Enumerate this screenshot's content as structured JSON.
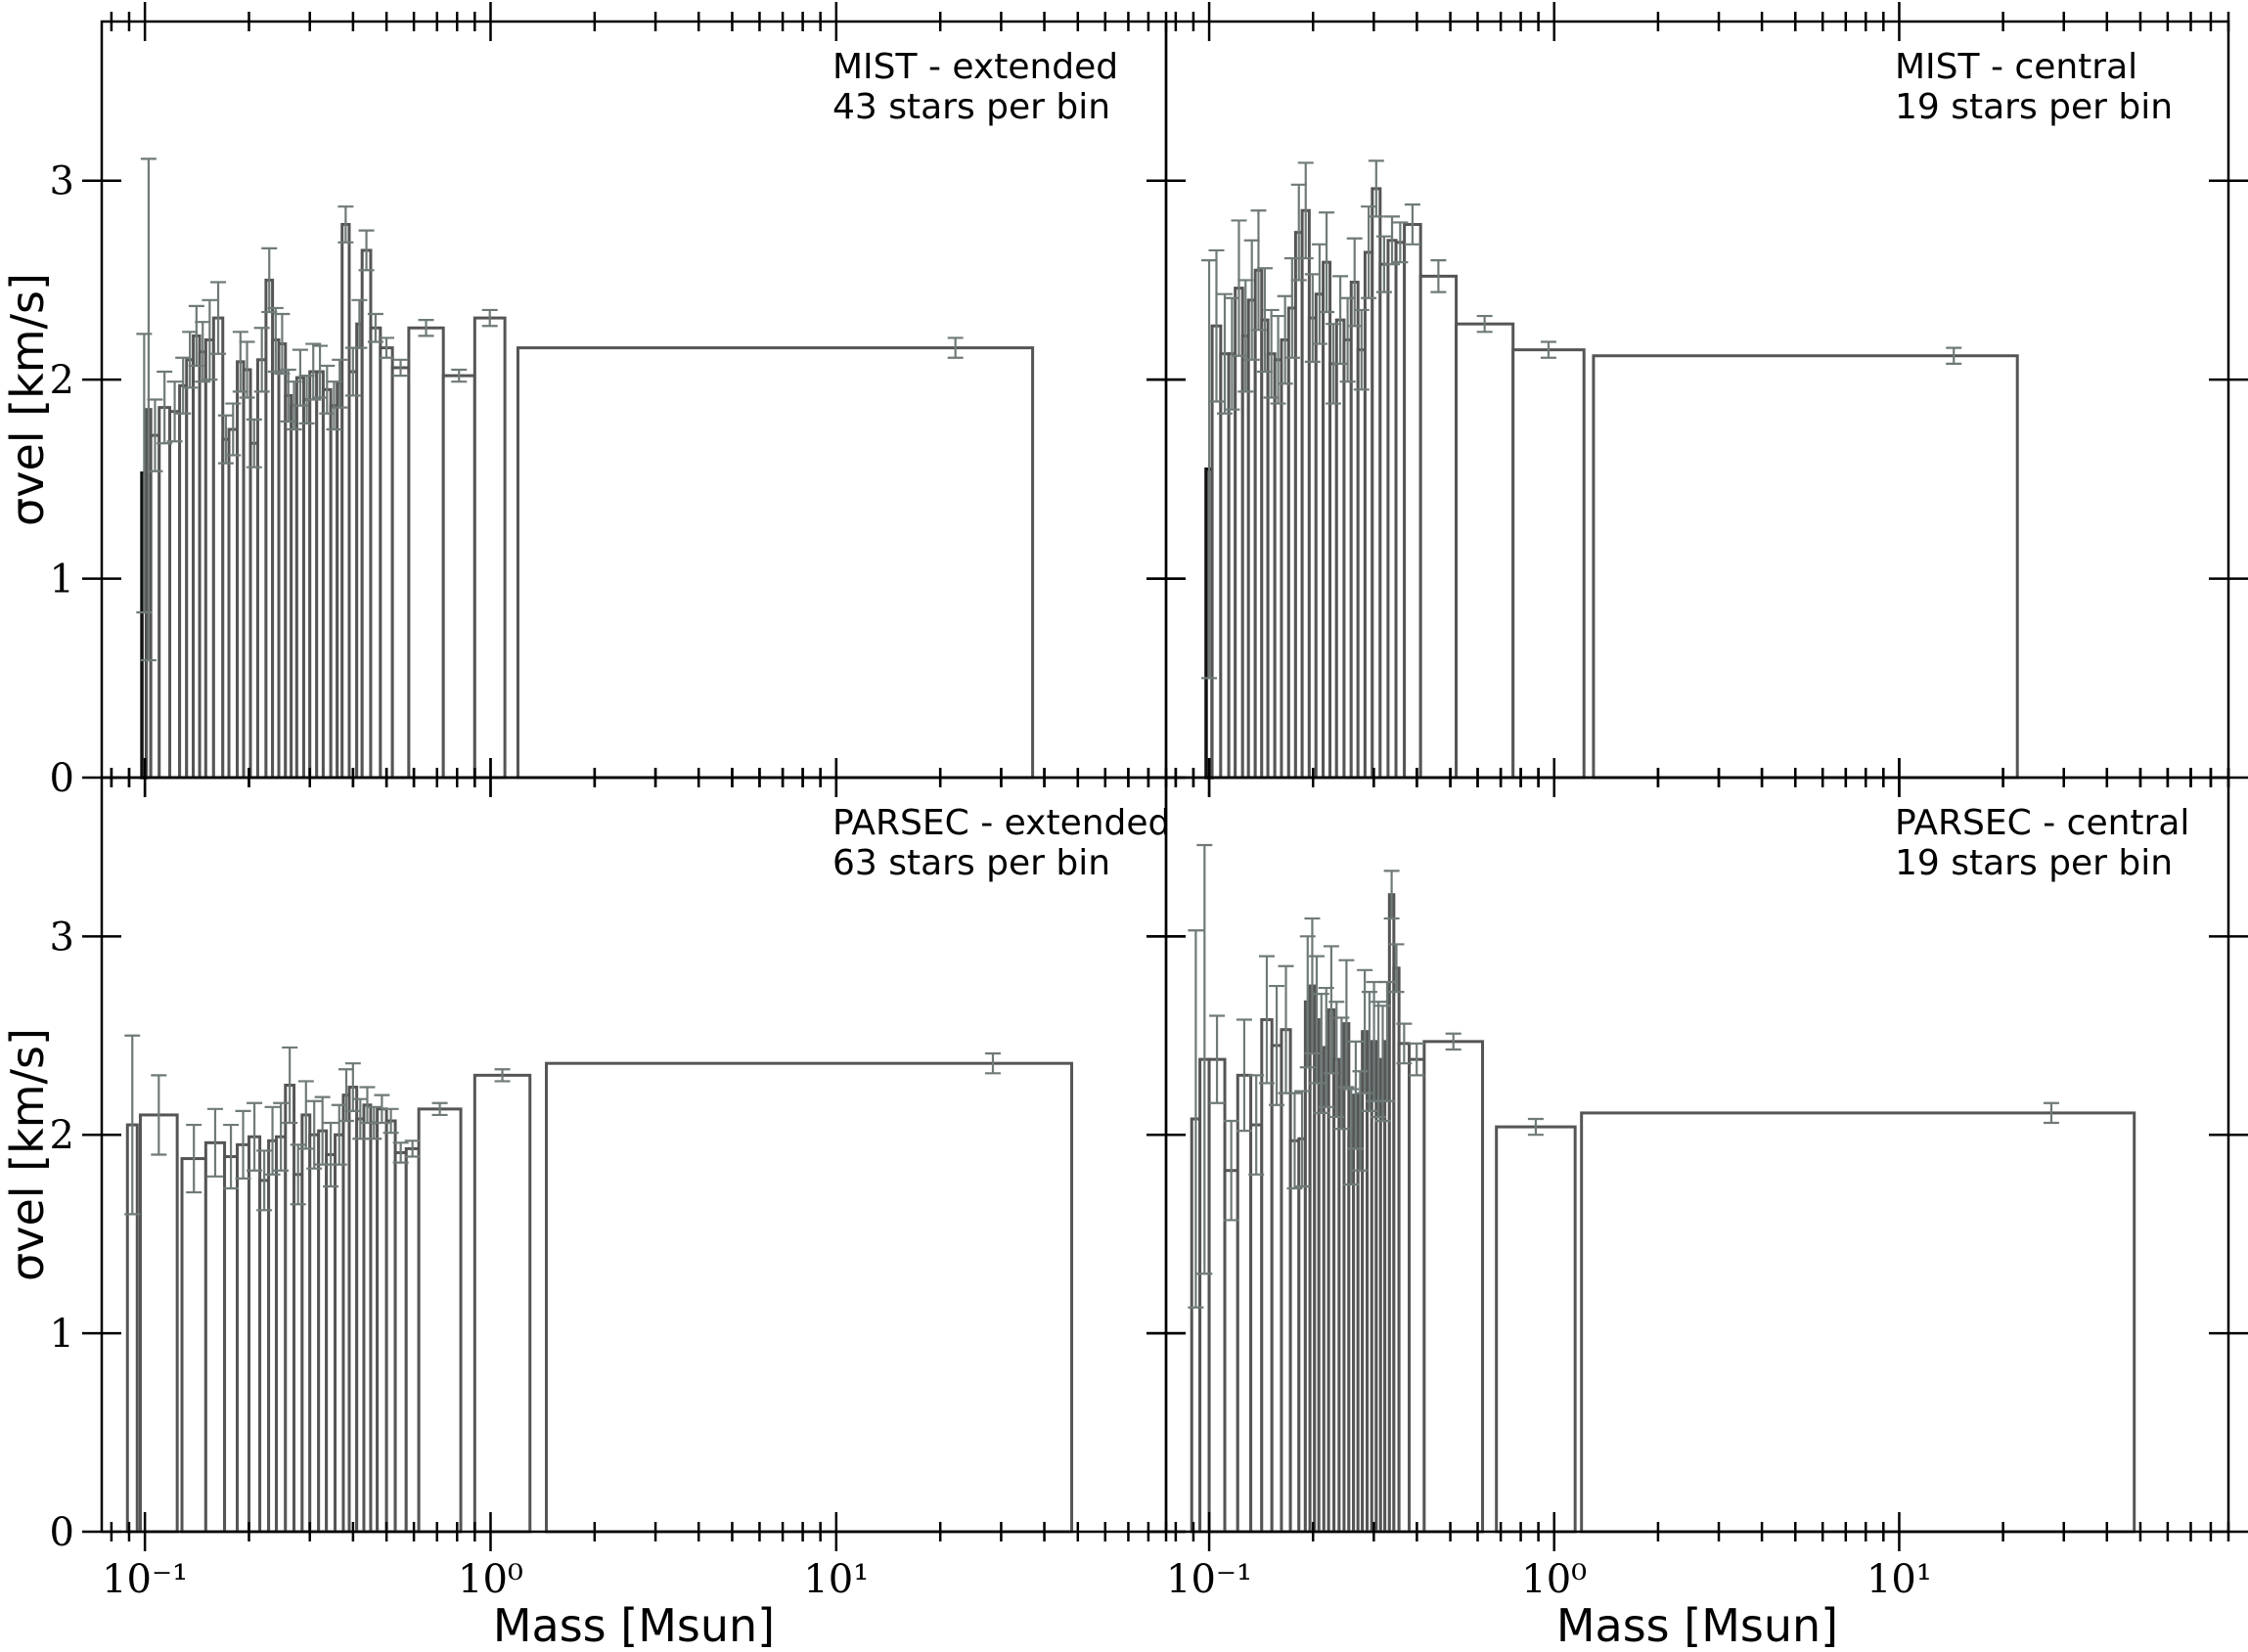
{
  "chart_data": [
    {
      "type": "bar",
      "title": "",
      "annotation_lines": [
        "MIST - extended",
        "43 stars per bin"
      ],
      "xscale": "log",
      "xlim": [
        0.075,
        90
      ],
      "ylim": [
        0,
        3.8
      ],
      "xlabel": "",
      "ylabel": "σvel [km/s]",
      "yticks": [
        "0",
        "1",
        "2",
        "3"
      ],
      "xticks": [],
      "bars": [
        {
          "x0": 0.098,
          "x1": 0.101,
          "y": 1.53,
          "err": 0.7,
          "bold": true
        },
        {
          "x0": 0.101,
          "x1": 0.104,
          "y": 1.85,
          "err": 1.26
        },
        {
          "x0": 0.104,
          "x1": 0.11,
          "y": 1.72,
          "err": 0.18
        },
        {
          "x0": 0.11,
          "x1": 0.118,
          "y": 1.86,
          "err": 0.18
        },
        {
          "x0": 0.118,
          "x1": 0.126,
          "y": 1.84,
          "err": 0.15
        },
        {
          "x0": 0.126,
          "x1": 0.132,
          "y": 1.97,
          "err": 0.14
        },
        {
          "x0": 0.132,
          "x1": 0.138,
          "y": 2.1,
          "err": 0.14
        },
        {
          "x0": 0.138,
          "x1": 0.144,
          "y": 2.22,
          "err": 0.15
        },
        {
          "x0": 0.144,
          "x1": 0.15,
          "y": 2.14,
          "err": 0.15
        },
        {
          "x0": 0.15,
          "x1": 0.158,
          "y": 2.2,
          "err": 0.2
        },
        {
          "x0": 0.158,
          "x1": 0.168,
          "y": 2.31,
          "err": 0.18
        },
        {
          "x0": 0.168,
          "x1": 0.175,
          "y": 1.7,
          "err": 0.12
        },
        {
          "x0": 0.175,
          "x1": 0.185,
          "y": 1.75,
          "err": 0.13
        },
        {
          "x0": 0.185,
          "x1": 0.193,
          "y": 2.09,
          "err": 0.15
        },
        {
          "x0": 0.193,
          "x1": 0.202,
          "y": 2.05,
          "err": 0.14
        },
        {
          "x0": 0.202,
          "x1": 0.212,
          "y": 1.68,
          "err": 0.12
        },
        {
          "x0": 0.212,
          "x1": 0.224,
          "y": 2.1,
          "err": 0.16
        },
        {
          "x0": 0.224,
          "x1": 0.234,
          "y": 2.5,
          "err": 0.16
        },
        {
          "x0": 0.234,
          "x1": 0.244,
          "y": 2.2,
          "err": 0.16
        },
        {
          "x0": 0.244,
          "x1": 0.255,
          "y": 2.18,
          "err": 0.15
        },
        {
          "x0": 0.255,
          "x1": 0.265,
          "y": 1.92,
          "err": 0.13
        },
        {
          "x0": 0.265,
          "x1": 0.275,
          "y": 1.87,
          "err": 0.12
        },
        {
          "x0": 0.275,
          "x1": 0.288,
          "y": 2.01,
          "err": 0.14
        },
        {
          "x0": 0.288,
          "x1": 0.3,
          "y": 1.9,
          "err": 0.12
        },
        {
          "x0": 0.3,
          "x1": 0.314,
          "y": 2.04,
          "err": 0.14
        },
        {
          "x0": 0.314,
          "x1": 0.328,
          "y": 2.04,
          "err": 0.13
        },
        {
          "x0": 0.328,
          "x1": 0.345,
          "y": 1.95,
          "err": 0.12
        },
        {
          "x0": 0.345,
          "x1": 0.36,
          "y": 1.87,
          "err": 0.12
        },
        {
          "x0": 0.36,
          "x1": 0.372,
          "y": 1.98,
          "err": 0.12
        },
        {
          "x0": 0.372,
          "x1": 0.39,
          "y": 2.78,
          "err": 0.09
        },
        {
          "x0": 0.39,
          "x1": 0.41,
          "y": 2.04,
          "err": 0.12
        },
        {
          "x0": 0.41,
          "x1": 0.425,
          "y": 2.28,
          "err": 0.12
        },
        {
          "x0": 0.425,
          "x1": 0.45,
          "y": 2.65,
          "err": 0.1
        },
        {
          "x0": 0.45,
          "x1": 0.48,
          "y": 2.26,
          "err": 0.07
        },
        {
          "x0": 0.48,
          "x1": 0.52,
          "y": 2.16,
          "err": 0.05
        },
        {
          "x0": 0.52,
          "x1": 0.58,
          "y": 2.06,
          "err": 0.04
        },
        {
          "x0": 0.58,
          "x1": 0.73,
          "y": 2.26,
          "err": 0.04
        },
        {
          "x0": 0.73,
          "x1": 0.9,
          "y": 2.02,
          "err": 0.03
        },
        {
          "x0": 0.9,
          "x1": 1.1,
          "y": 2.31,
          "err": 0.04
        },
        {
          "x0": 1.2,
          "x1": 37.0,
          "y": 2.16,
          "err": 0.05
        }
      ]
    },
    {
      "type": "bar",
      "title": "",
      "annotation_lines": [
        "MIST - central",
        "19 stars per bin"
      ],
      "xscale": "log",
      "xlim": [
        0.075,
        90
      ],
      "ylim": [
        0,
        3.8
      ],
      "xlabel": "",
      "ylabel": "",
      "yticks": [],
      "xticks": [],
      "bars": [
        {
          "x0": 0.098,
          "x1": 0.102,
          "y": 1.55,
          "err": 1.05,
          "bold": true
        },
        {
          "x0": 0.102,
          "x1": 0.108,
          "y": 2.27,
          "err": 0.38
        },
        {
          "x0": 0.108,
          "x1": 0.114,
          "y": 2.13,
          "err": 0.3
        },
        {
          "x0": 0.114,
          "x1": 0.119,
          "y": 2.13,
          "err": 0.28
        },
        {
          "x0": 0.119,
          "x1": 0.125,
          "y": 2.46,
          "err": 0.34
        },
        {
          "x0": 0.125,
          "x1": 0.13,
          "y": 2.22,
          "err": 0.28
        },
        {
          "x0": 0.13,
          "x1": 0.136,
          "y": 2.4,
          "err": 0.3
        },
        {
          "x0": 0.136,
          "x1": 0.142,
          "y": 2.55,
          "err": 0.3
        },
        {
          "x0": 0.142,
          "x1": 0.148,
          "y": 2.3,
          "err": 0.26
        },
        {
          "x0": 0.148,
          "x1": 0.155,
          "y": 2.13,
          "err": 0.22
        },
        {
          "x0": 0.155,
          "x1": 0.162,
          "y": 2.1,
          "err": 0.22
        },
        {
          "x0": 0.162,
          "x1": 0.17,
          "y": 2.2,
          "err": 0.22
        },
        {
          "x0": 0.17,
          "x1": 0.178,
          "y": 2.36,
          "err": 0.25
        },
        {
          "x0": 0.178,
          "x1": 0.186,
          "y": 2.74,
          "err": 0.24
        },
        {
          "x0": 0.186,
          "x1": 0.195,
          "y": 2.85,
          "err": 0.24
        },
        {
          "x0": 0.195,
          "x1": 0.204,
          "y": 2.31,
          "err": 0.22
        },
        {
          "x0": 0.204,
          "x1": 0.214,
          "y": 2.43,
          "err": 0.25
        },
        {
          "x0": 0.214,
          "x1": 0.224,
          "y": 2.59,
          "err": 0.25
        },
        {
          "x0": 0.224,
          "x1": 0.234,
          "y": 2.08,
          "err": 0.2
        },
        {
          "x0": 0.234,
          "x1": 0.246,
          "y": 2.3,
          "err": 0.22
        },
        {
          "x0": 0.246,
          "x1": 0.258,
          "y": 2.2,
          "err": 0.21
        },
        {
          "x0": 0.258,
          "x1": 0.27,
          "y": 2.49,
          "err": 0.22
        },
        {
          "x0": 0.27,
          "x1": 0.283,
          "y": 2.15,
          "err": 0.2
        },
        {
          "x0": 0.283,
          "x1": 0.297,
          "y": 2.64,
          "err": 0.23
        },
        {
          "x0": 0.297,
          "x1": 0.313,
          "y": 2.96,
          "err": 0.14
        },
        {
          "x0": 0.313,
          "x1": 0.33,
          "y": 2.58,
          "err": 0.14
        },
        {
          "x0": 0.33,
          "x1": 0.348,
          "y": 2.7,
          "err": 0.12
        },
        {
          "x0": 0.348,
          "x1": 0.368,
          "y": 2.69,
          "err": 0.1
        },
        {
          "x0": 0.368,
          "x1": 0.41,
          "y": 2.78,
          "err": 0.1
        },
        {
          "x0": 0.41,
          "x1": 0.52,
          "y": 2.52,
          "err": 0.08
        },
        {
          "x0": 0.52,
          "x1": 0.76,
          "y": 2.28,
          "err": 0.04
        },
        {
          "x0": 0.76,
          "x1": 1.22,
          "y": 2.15,
          "err": 0.04
        },
        {
          "x0": 1.3,
          "x1": 22.0,
          "y": 2.12,
          "err": 0.04
        }
      ]
    },
    {
      "type": "bar",
      "title": "",
      "annotation_lines": [
        "PARSEC - extended",
        "63 stars per bin"
      ],
      "xscale": "log",
      "xlim": [
        0.075,
        90
      ],
      "ylim": [
        0,
        3.8
      ],
      "xlabel": "Mass [Msun]",
      "ylabel": "σvel [km/s]",
      "yticks": [
        "0",
        "1",
        "2",
        "3"
      ],
      "xticks": [
        "10⁻¹",
        "10⁰",
        "10¹"
      ],
      "bars": [
        {
          "x0": 0.089,
          "x1": 0.095,
          "y": 2.05,
          "err": 0.45
        },
        {
          "x0": 0.097,
          "x1": 0.124,
          "y": 2.1,
          "err": 0.2
        },
        {
          "x0": 0.128,
          "x1": 0.15,
          "y": 1.88,
          "err": 0.17
        },
        {
          "x0": 0.15,
          "x1": 0.17,
          "y": 1.96,
          "err": 0.17
        },
        {
          "x0": 0.17,
          "x1": 0.185,
          "y": 1.89,
          "err": 0.16
        },
        {
          "x0": 0.185,
          "x1": 0.2,
          "y": 1.95,
          "err": 0.17
        },
        {
          "x0": 0.2,
          "x1": 0.215,
          "y": 1.99,
          "err": 0.17
        },
        {
          "x0": 0.215,
          "x1": 0.228,
          "y": 1.77,
          "err": 0.15
        },
        {
          "x0": 0.228,
          "x1": 0.24,
          "y": 1.97,
          "err": 0.17
        },
        {
          "x0": 0.24,
          "x1": 0.255,
          "y": 1.99,
          "err": 0.17
        },
        {
          "x0": 0.255,
          "x1": 0.27,
          "y": 2.25,
          "err": 0.19
        },
        {
          "x0": 0.27,
          "x1": 0.285,
          "y": 1.8,
          "err": 0.15
        },
        {
          "x0": 0.285,
          "x1": 0.3,
          "y": 2.1,
          "err": 0.17
        },
        {
          "x0": 0.3,
          "x1": 0.318,
          "y": 2.0,
          "err": 0.17
        },
        {
          "x0": 0.318,
          "x1": 0.335,
          "y": 2.02,
          "err": 0.17
        },
        {
          "x0": 0.335,
          "x1": 0.355,
          "y": 1.9,
          "err": 0.16
        },
        {
          "x0": 0.355,
          "x1": 0.375,
          "y": 2.0,
          "err": 0.15
        },
        {
          "x0": 0.375,
          "x1": 0.39,
          "y": 2.2,
          "err": 0.13
        },
        {
          "x0": 0.39,
          "x1": 0.41,
          "y": 2.24,
          "err": 0.12
        },
        {
          "x0": 0.41,
          "x1": 0.43,
          "y": 2.08,
          "err": 0.1
        },
        {
          "x0": 0.43,
          "x1": 0.45,
          "y": 2.15,
          "err": 0.09
        },
        {
          "x0": 0.45,
          "x1": 0.47,
          "y": 2.06,
          "err": 0.08
        },
        {
          "x0": 0.47,
          "x1": 0.5,
          "y": 2.13,
          "err": 0.07
        },
        {
          "x0": 0.5,
          "x1": 0.53,
          "y": 2.07,
          "err": 0.06
        },
        {
          "x0": 0.53,
          "x1": 0.57,
          "y": 1.91,
          "err": 0.05
        },
        {
          "x0": 0.57,
          "x1": 0.62,
          "y": 1.93,
          "err": 0.04
        },
        {
          "x0": 0.62,
          "x1": 0.82,
          "y": 2.13,
          "err": 0.03
        },
        {
          "x0": 0.9,
          "x1": 1.3,
          "y": 2.3,
          "err": 0.03
        },
        {
          "x0": 1.45,
          "x1": 48.0,
          "y": 2.36,
          "err": 0.05
        }
      ]
    },
    {
      "type": "bar",
      "title": "",
      "annotation_lines": [
        "PARSEC - central",
        "19 stars per bin"
      ],
      "xscale": "log",
      "xlim": [
        0.075,
        90
      ],
      "ylim": [
        0,
        3.8
      ],
      "xlabel": "Mass [Msun]",
      "ylabel": "",
      "yticks": [],
      "xticks": [
        "10⁻¹",
        "10⁰",
        "10¹"
      ],
      "bars": [
        {
          "x0": 0.089,
          "x1": 0.094,
          "y": 2.08,
          "err": 0.95
        },
        {
          "x0": 0.094,
          "x1": 0.1,
          "y": 2.38,
          "err": 1.08
        },
        {
          "x0": 0.1,
          "x1": 0.111,
          "y": 2.38,
          "err": 0.22
        },
        {
          "x0": 0.111,
          "x1": 0.121,
          "y": 1.82,
          "err": 0.25
        },
        {
          "x0": 0.121,
          "x1": 0.132,
          "y": 2.3,
          "err": 0.28
        },
        {
          "x0": 0.132,
          "x1": 0.142,
          "y": 2.05,
          "err": 0.25
        },
        {
          "x0": 0.142,
          "x1": 0.152,
          "y": 2.58,
          "err": 0.32
        },
        {
          "x0": 0.152,
          "x1": 0.162,
          "y": 2.45,
          "err": 0.3
        },
        {
          "x0": 0.162,
          "x1": 0.172,
          "y": 2.53,
          "err": 0.32
        },
        {
          "x0": 0.172,
          "x1": 0.182,
          "y": 1.97,
          "err": 0.24
        },
        {
          "x0": 0.182,
          "x1": 0.19,
          "y": 1.98,
          "err": 0.24
        },
        {
          "x0": 0.19,
          "x1": 0.196,
          "y": 2.67,
          "err": 0.33
        },
        {
          "x0": 0.196,
          "x1": 0.202,
          "y": 2.75,
          "err": 0.34
        },
        {
          "x0": 0.202,
          "x1": 0.208,
          "y": 2.58,
          "err": 0.32
        },
        {
          "x0": 0.208,
          "x1": 0.215,
          "y": 2.41,
          "err": 0.3
        },
        {
          "x0": 0.215,
          "x1": 0.222,
          "y": 2.44,
          "err": 0.3
        },
        {
          "x0": 0.222,
          "x1": 0.23,
          "y": 2.63,
          "err": 0.32
        },
        {
          "x0": 0.23,
          "x1": 0.238,
          "y": 2.38,
          "err": 0.29
        },
        {
          "x0": 0.238,
          "x1": 0.246,
          "y": 2.31,
          "err": 0.28
        },
        {
          "x0": 0.246,
          "x1": 0.254,
          "y": 2.56,
          "err": 0.32
        },
        {
          "x0": 0.254,
          "x1": 0.262,
          "y": 1.99,
          "err": 0.24
        },
        {
          "x0": 0.262,
          "x1": 0.27,
          "y": 2.2,
          "err": 0.27
        },
        {
          "x0": 0.27,
          "x1": 0.278,
          "y": 2.07,
          "err": 0.25
        },
        {
          "x0": 0.278,
          "x1": 0.287,
          "y": 2.52,
          "err": 0.31
        },
        {
          "x0": 0.287,
          "x1": 0.296,
          "y": 2.42,
          "err": 0.3
        },
        {
          "x0": 0.296,
          "x1": 0.305,
          "y": 2.47,
          "err": 0.3
        },
        {
          "x0": 0.305,
          "x1": 0.314,
          "y": 2.38,
          "err": 0.29
        },
        {
          "x0": 0.314,
          "x1": 0.323,
          "y": 2.36,
          "err": 0.29
        },
        {
          "x0": 0.323,
          "x1": 0.333,
          "y": 2.47,
          "err": 0.3
        },
        {
          "x0": 0.333,
          "x1": 0.343,
          "y": 3.21,
          "err": 0.12
        },
        {
          "x0": 0.343,
          "x1": 0.355,
          "y": 2.84,
          "err": 0.12
        },
        {
          "x0": 0.355,
          "x1": 0.38,
          "y": 2.46,
          "err": 0.1
        },
        {
          "x0": 0.38,
          "x1": 0.42,
          "y": 2.38,
          "err": 0.08
        },
        {
          "x0": 0.42,
          "x1": 0.62,
          "y": 2.47,
          "err": 0.04
        },
        {
          "x0": 0.68,
          "x1": 1.15,
          "y": 2.04,
          "err": 0.04
        },
        {
          "x0": 1.2,
          "x1": 48.0,
          "y": 2.11,
          "err": 0.05
        }
      ]
    }
  ]
}
